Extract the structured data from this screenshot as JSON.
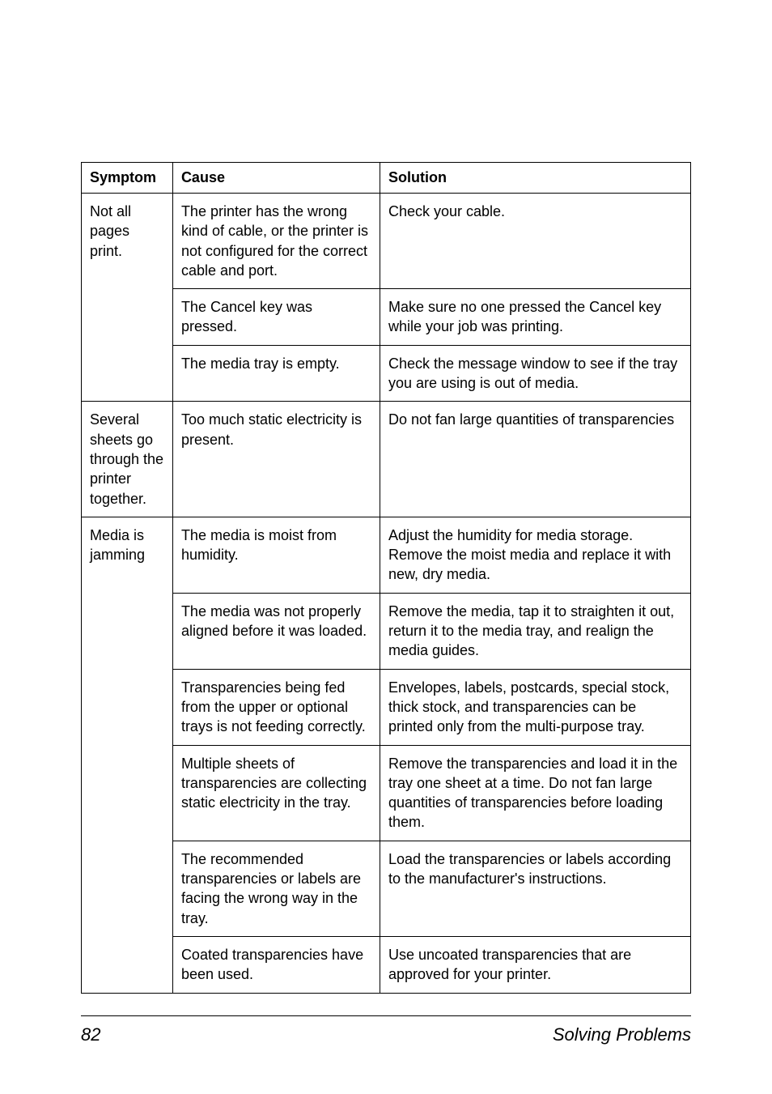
{
  "columns": [
    "Symptom",
    "Cause",
    "Solution"
  ],
  "groups": [
    {
      "symptom": "Not all pages print.",
      "rows": [
        {
          "cause": "The printer has the wrong kind of cable, or the printer is not configured for the correct cable and port.",
          "solution": "Check your cable."
        },
        {
          "cause": "The Cancel key was pressed.",
          "solution": "Make sure no one pressed the Cancel key while your job was printing."
        },
        {
          "cause": "The media tray is empty.",
          "solution": "Check the message window to see if the tray you are using is out of media."
        }
      ]
    },
    {
      "symptom": "Several sheets go through the printer together.",
      "rows": [
        {
          "cause": "Too much static electricity is present.",
          "solution": "Do not fan large quantities of transparencies"
        }
      ]
    },
    {
      "symptom": "Media is jamming",
      "rows": [
        {
          "cause": "The media is moist from humidity.",
          "solution": "Adjust the humidity for media storage. Remove the moist media and replace it with new, dry media."
        },
        {
          "cause": "The media was not properly aligned before it was loaded.",
          "solution": "Remove the media, tap it to straighten it out, return it to the media tray, and realign the media guides."
        },
        {
          "cause": "Transparencies being fed from the upper or optional trays is not feeding correctly.",
          "solution": "Envelopes, labels, postcards, special stock, thick stock, and transparencies can be printed only from the multi-purpose tray."
        },
        {
          "cause": "Multiple sheets of transparencies are collecting static electricity in the tray.",
          "solution": "Remove the transparencies and load it in the tray one sheet at a time. Do not fan large quantities of transparencies before loading them."
        },
        {
          "cause": "The recommended transparencies or labels are facing the wrong way in the tray.",
          "solution": "Load the transparencies or labels according to the manufacturer's instructions."
        },
        {
          "cause": "Coated transparencies have been used.",
          "solution": "Use uncoated transparencies that are approved for your printer."
        }
      ]
    }
  ],
  "footer": {
    "page": "82",
    "section": "Solving Problems"
  }
}
